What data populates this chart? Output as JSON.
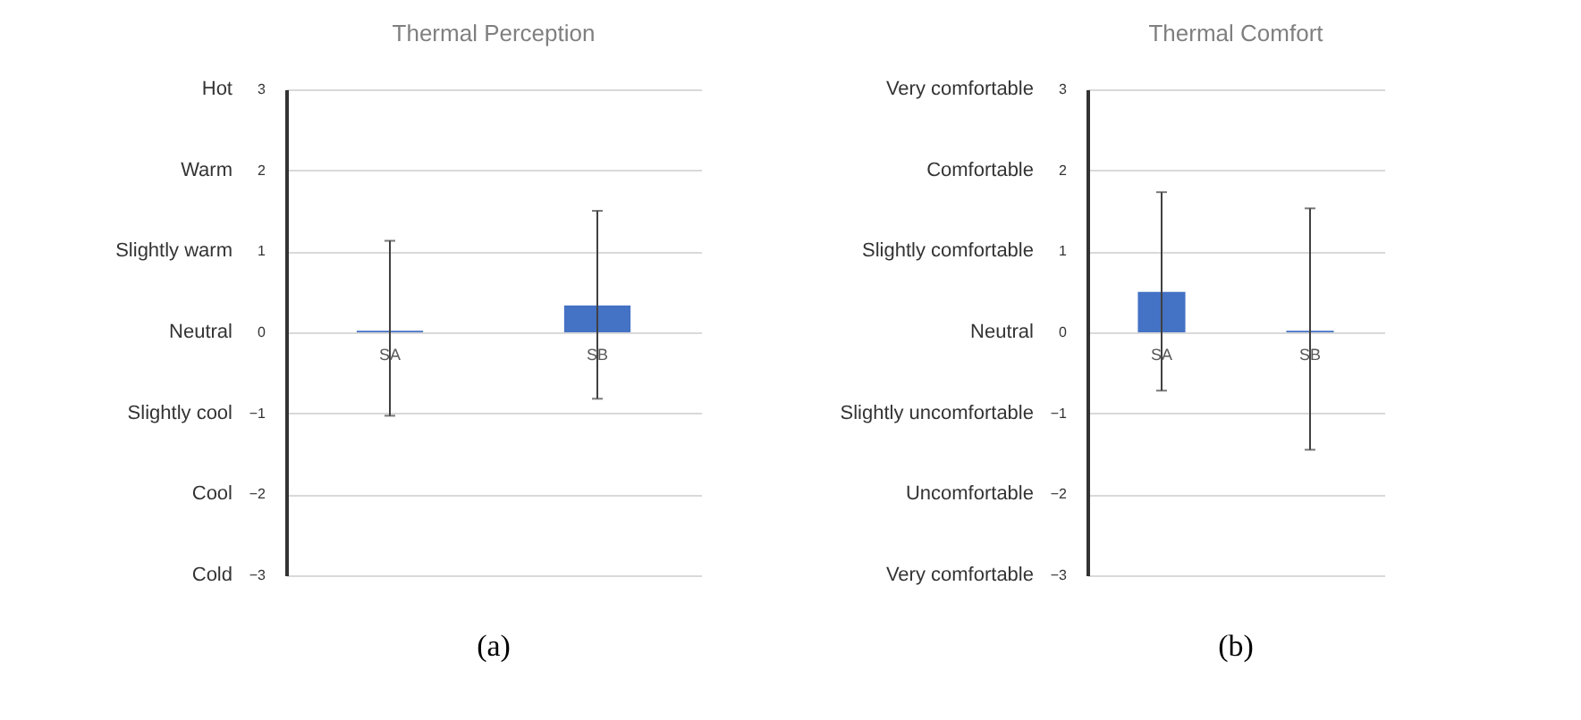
{
  "chart_data": [
    {
      "type": "bar",
      "title": "Thermal Perception",
      "categories": [
        "SA",
        "SB"
      ],
      "values": [
        0.02,
        0.33
      ],
      "errors": [
        [
          -1.03,
          1.13
        ],
        [
          -0.82,
          1.5
        ]
      ],
      "color": "#4472c4",
      "ylim": [
        -3,
        3
      ],
      "yticks": [
        -3,
        -2,
        -1,
        0,
        1,
        2,
        3
      ],
      "grid": "y",
      "annotations": [
        "(a)",
        "Hot",
        "Warm",
        "Slightly warm",
        "Neutral",
        "Slightly cool",
        "Cool",
        "Cold"
      ]
    },
    {
      "type": "bar",
      "title": "Thermal Comfort",
      "categories": [
        "SA",
        "SB"
      ],
      "values": [
        0.5,
        0.02
      ],
      "errors": [
        [
          -0.72,
          1.73
        ],
        [
          -1.45,
          1.53
        ]
      ],
      "color": "#4472c4",
      "ylim": [
        -3,
        3
      ],
      "yticks": [
        -3,
        -2,
        -1,
        0,
        1,
        2,
        3
      ],
      "grid": "y",
      "annotations": [
        "(b)",
        "Very comfortable",
        "Comfortable",
        "Slightly comfortable",
        "Neutral",
        "Slightly uncomfortable",
        "Uncomfortable",
        "Very comfortable"
      ]
    }
  ]
}
